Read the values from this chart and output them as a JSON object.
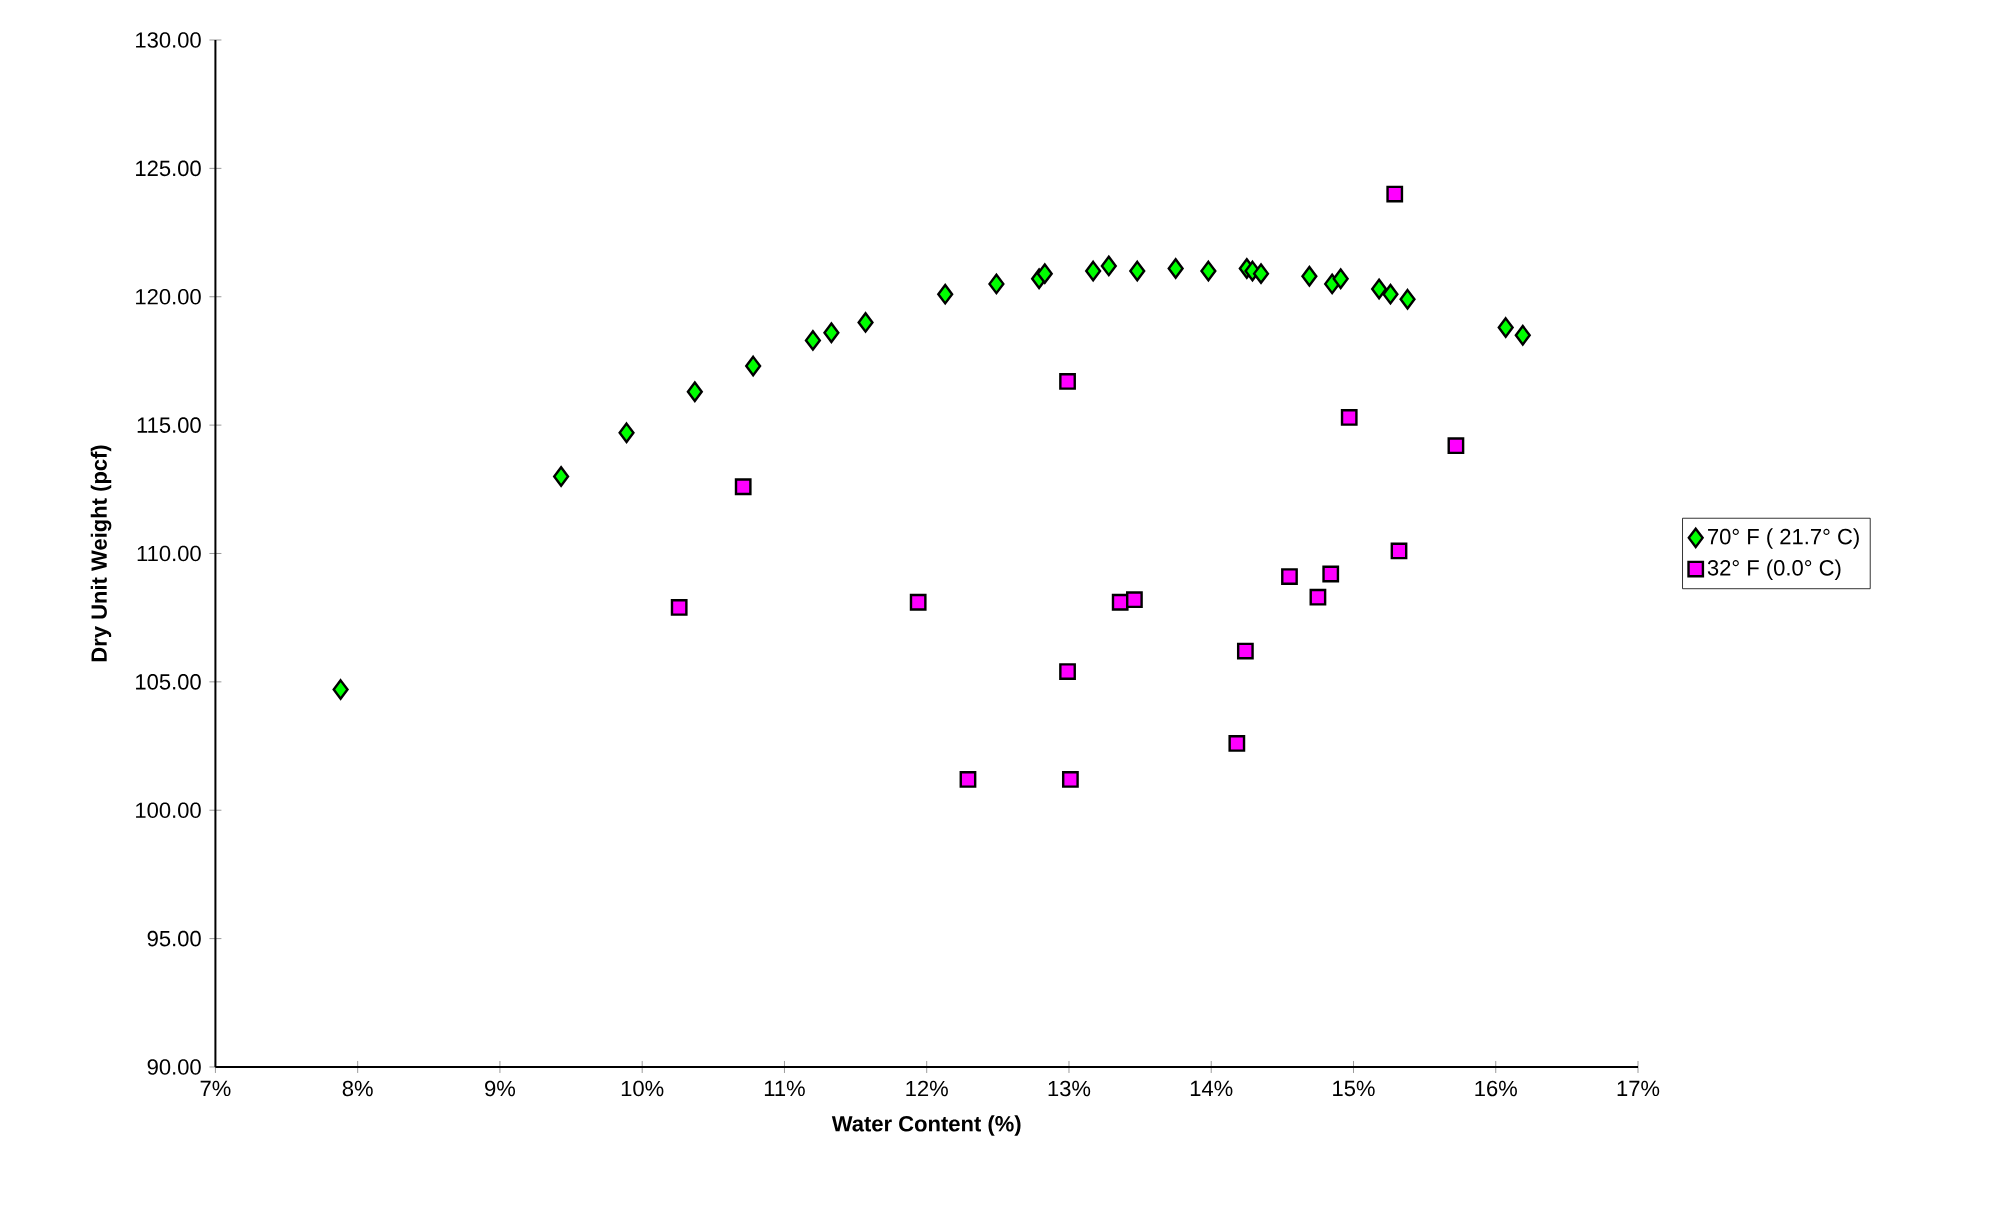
{
  "chart_data": {
    "type": "scatter",
    "xlabel": "Water Content (%)",
    "ylabel": "Dry Unit Weight (pcf)",
    "xlim": [
      7,
      17
    ],
    "xticks": [
      {
        "value": 7,
        "label": "7%"
      },
      {
        "value": 8,
        "label": "8%"
      },
      {
        "value": 9,
        "label": "9%"
      },
      {
        "value": 10,
        "label": "10%"
      },
      {
        "value": 11,
        "label": "11%"
      },
      {
        "value": 12,
        "label": "12%"
      },
      {
        "value": 13,
        "label": "13%"
      },
      {
        "value": 14,
        "label": "14%"
      },
      {
        "value": 15,
        "label": "15%"
      },
      {
        "value": 16,
        "label": "16%"
      },
      {
        "value": 17,
        "label": "17%"
      }
    ],
    "ylim": [
      90,
      130
    ],
    "yticks": [
      {
        "value": 90,
        "label": "90.00"
      },
      {
        "value": 95,
        "label": "95.00"
      },
      {
        "value": 100,
        "label": "100.00"
      },
      {
        "value": 105,
        "label": "105.00"
      },
      {
        "value": 110,
        "label": "110.00"
      },
      {
        "value": 115,
        "label": "115.00"
      },
      {
        "value": 120,
        "label": "120.00"
      },
      {
        "value": 125,
        "label": "125.00"
      },
      {
        "value": 130,
        "label": "130.00"
      }
    ],
    "grid": false,
    "legend": "right",
    "series": [
      {
        "name": "70° F ( 21.7° C)",
        "color": "#00ff00",
        "marker": "diamond",
        "x": [
          7.88,
          9.43,
          9.89,
          10.37,
          10.78,
          11.2,
          11.33,
          11.57,
          12.13,
          12.49,
          12.79,
          12.83,
          13.17,
          13.28,
          13.48,
          13.75,
          13.98,
          14.25,
          14.29,
          14.35,
          14.69,
          14.85,
          14.91,
          15.18,
          15.26,
          15.38,
          16.07,
          16.19
        ],
        "values": [
          104.7,
          113.0,
          114.7,
          116.3,
          117.3,
          118.3,
          118.6,
          119.0,
          120.1,
          120.5,
          120.7,
          120.9,
          121.0,
          121.2,
          121.0,
          121.1,
          121.0,
          121.1,
          121.0,
          120.9,
          120.8,
          120.5,
          120.7,
          120.3,
          120.1,
          119.9,
          118.8,
          118.5
        ]
      },
      {
        "name": "32° F (0.0° C)",
        "color": "#ff00ff",
        "marker": "square",
        "x": [
          10.26,
          10.71,
          11.94,
          12.29,
          12.99,
          12.99,
          13.01,
          13.36,
          13.46,
          14.18,
          14.24,
          14.55,
          14.75,
          14.84,
          14.97,
          15.29,
          15.32,
          15.72
        ],
        "values": [
          107.9,
          112.6,
          108.1,
          101.2,
          116.7,
          105.4,
          101.2,
          108.1,
          108.2,
          102.6,
          106.2,
          109.1,
          108.3,
          109.2,
          115.3,
          124.0,
          110.1,
          114.2
        ]
      }
    ]
  }
}
